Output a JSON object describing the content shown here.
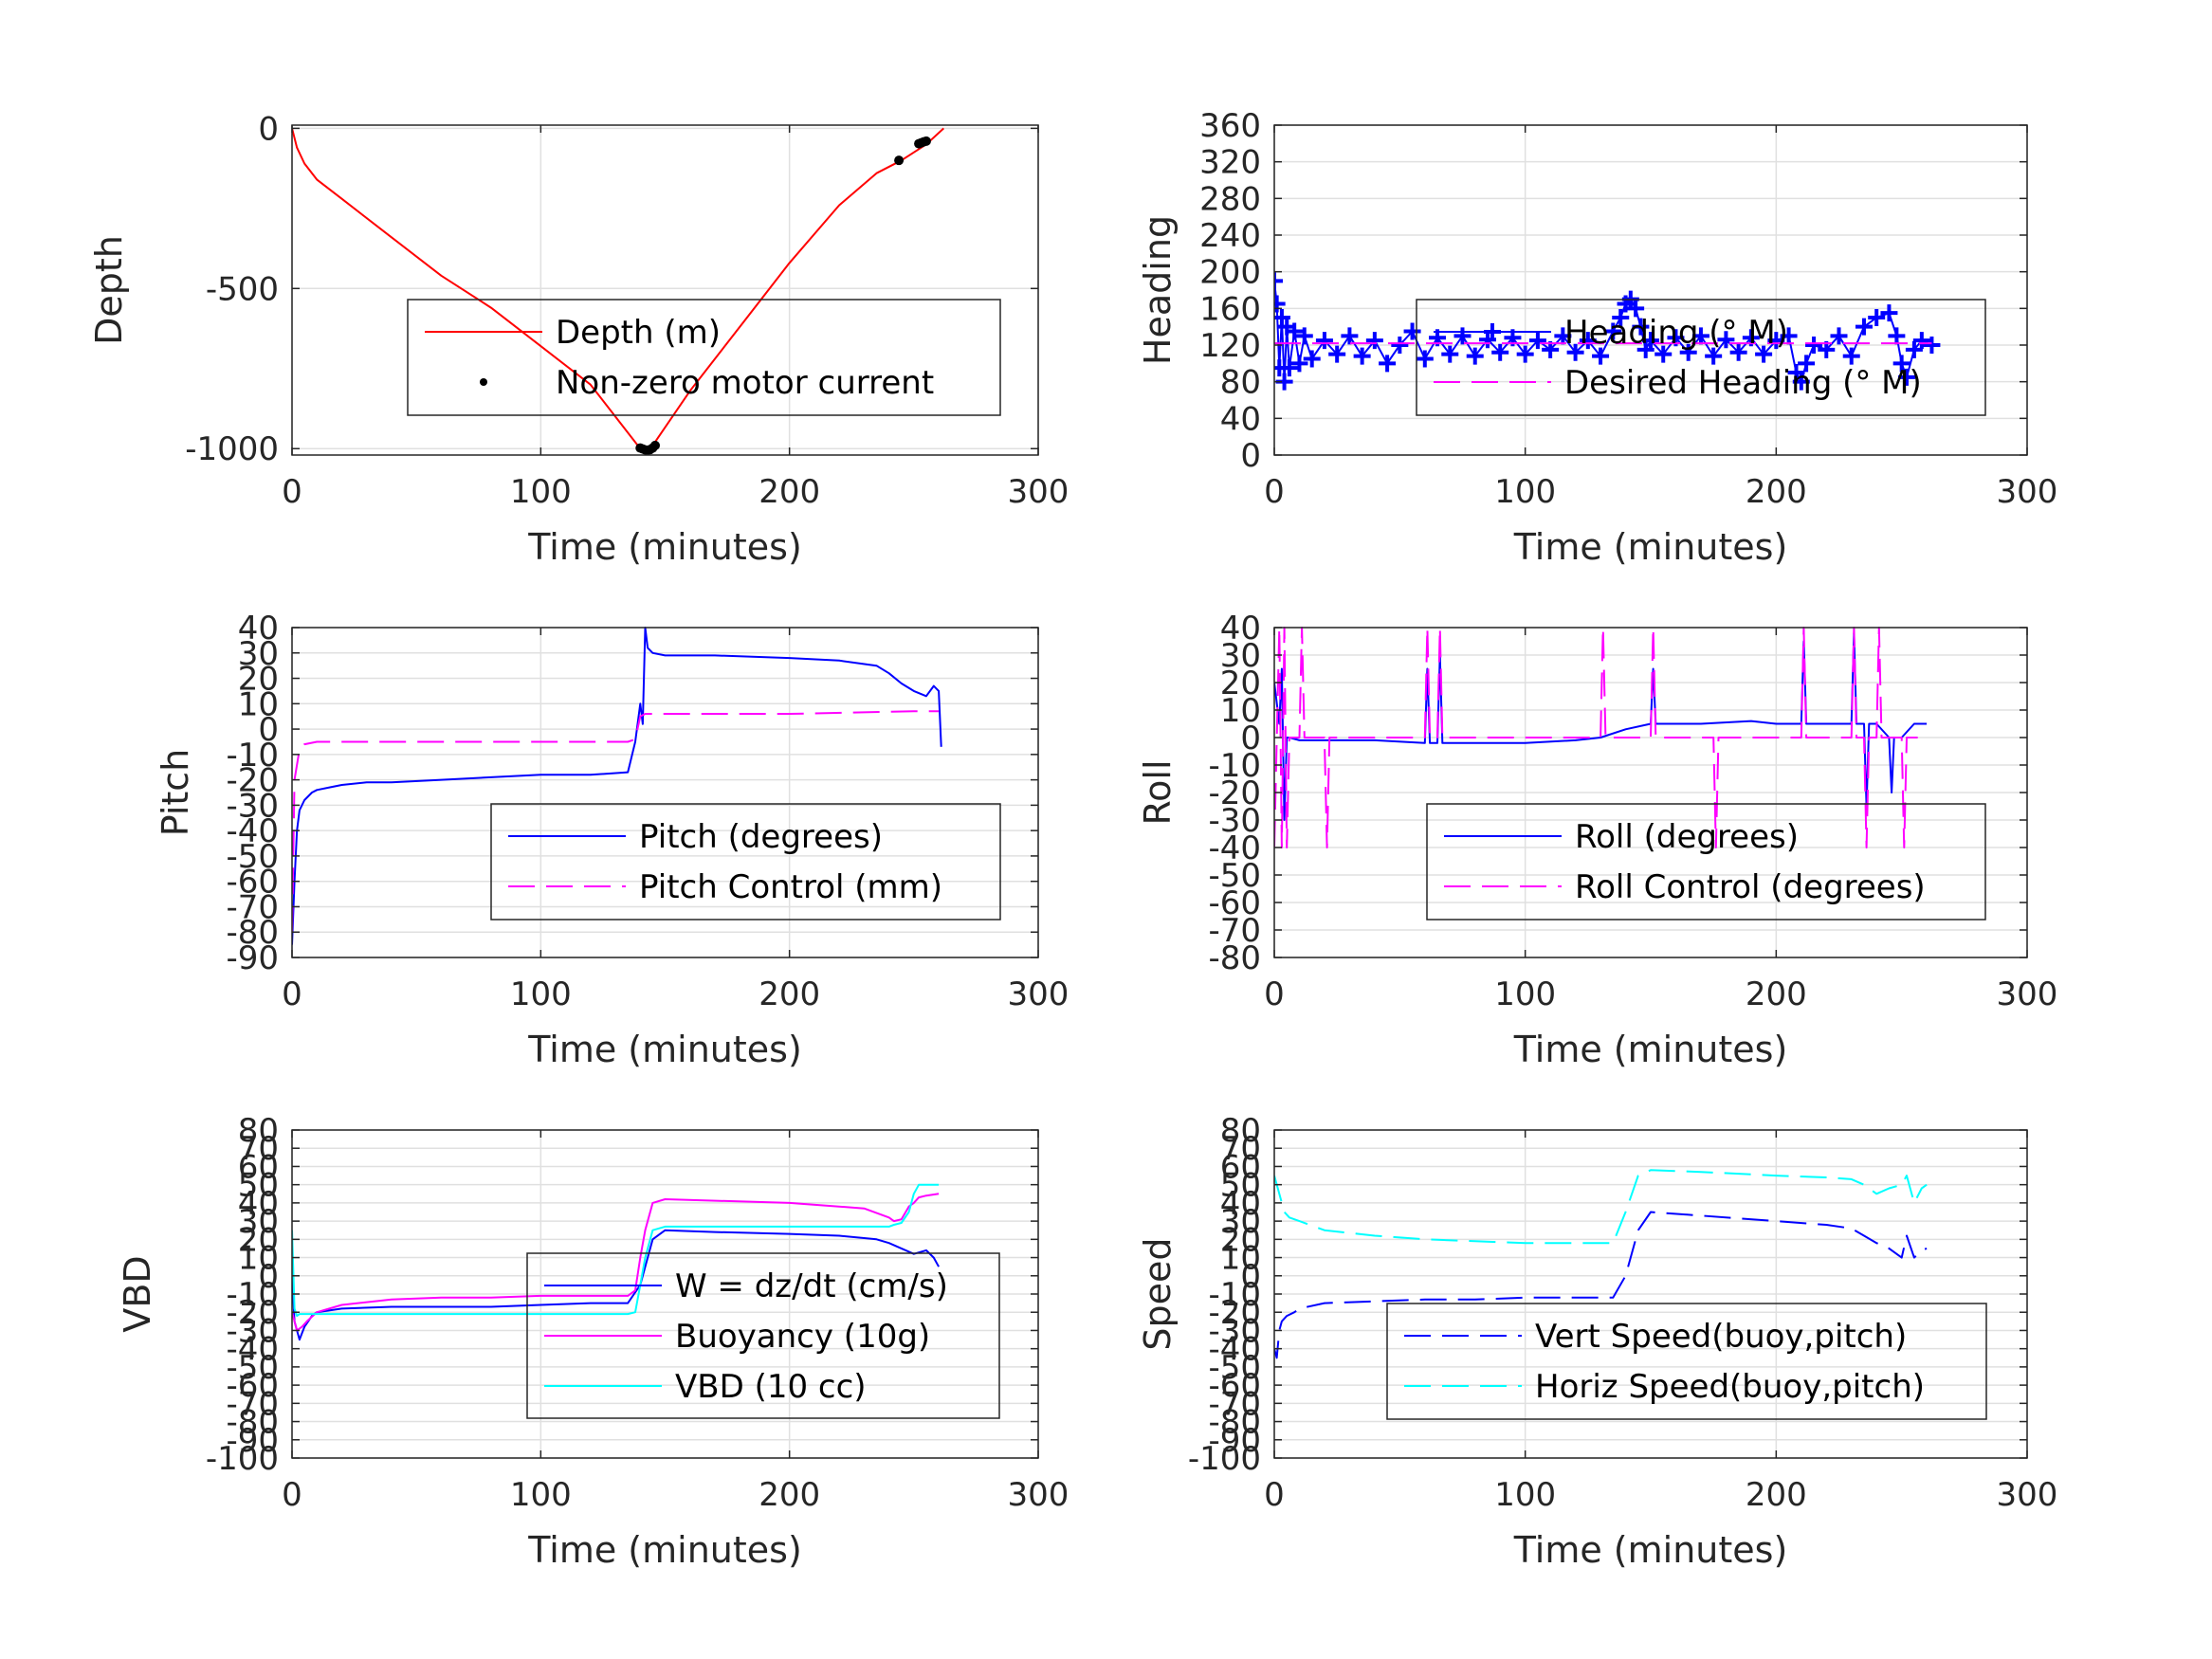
{
  "chart_data": [
    {
      "id": "depth",
      "type": "line",
      "title": "",
      "xlabel": "Time (minutes)",
      "ylabel": "Depth",
      "xlim": [
        0,
        300
      ],
      "ylim": [
        -1020,
        10
      ],
      "xticks": [
        0,
        100,
        200,
        300
      ],
      "yticks": [
        0,
        -500,
        -1000
      ],
      "grid": true,
      "legend": {
        "placement": "center-right",
        "entries": [
          "Depth (m)",
          "Non-zero motor current"
        ]
      },
      "series": [
        {
          "name": "Depth (m)",
          "style": "solid",
          "color": "#ff0000",
          "x": [
            0,
            2,
            5,
            10,
            20,
            40,
            60,
            80,
            100,
            120,
            140,
            142,
            145,
            160,
            180,
            200,
            220,
            235,
            245,
            255,
            262
          ],
          "y": [
            0,
            -60,
            -110,
            -160,
            -220,
            -340,
            -460,
            -560,
            -680,
            -800,
            -1000,
            -1005,
            -990,
            -820,
            -620,
            -420,
            -240,
            -140,
            -100,
            -50,
            0
          ]
        },
        {
          "name": "Non-zero motor current",
          "style": "dots",
          "color": "#000000",
          "x": [
            140,
            141,
            142,
            143,
            144,
            145,
            146,
            244,
            252,
            253,
            254,
            255
          ],
          "y": [
            -998,
            -1001,
            -1004,
            -1005,
            -1003,
            -998,
            -990,
            -100,
            -48,
            -45,
            -42,
            -40
          ]
        }
      ]
    },
    {
      "id": "heading",
      "type": "line",
      "title": "",
      "xlabel": "Time (minutes)",
      "ylabel": "Heading",
      "xlim": [
        0,
        300
      ],
      "ylim": [
        0,
        360
      ],
      "xticks": [
        0,
        100,
        200,
        300
      ],
      "yticks": [
        0,
        40,
        80,
        120,
        160,
        200,
        240,
        280,
        320,
        360
      ],
      "grid": true,
      "legend": {
        "placement": "top-center",
        "entries": [
          "Heading (° M)",
          "Desired Heading (° M)"
        ]
      },
      "series": [
        {
          "name": "Heading (° M)",
          "style": "plus-markers",
          "color": "#0000ff",
          "x": [
            0,
            1,
            2,
            3,
            4,
            5,
            6,
            8,
            10,
            12,
            15,
            20,
            25,
            30,
            35,
            40,
            45,
            50,
            55,
            60,
            65,
            70,
            75,
            80,
            85,
            90,
            95,
            100,
            105,
            110,
            115,
            120,
            125,
            130,
            135,
            138,
            140,
            142,
            144,
            146,
            148,
            150,
            155,
            160,
            165,
            170,
            175,
            180,
            185,
            190,
            195,
            200,
            205,
            208,
            210,
            212,
            215,
            220,
            225,
            230,
            235,
            240,
            245,
            248,
            250,
            252,
            255,
            258,
            262
          ],
          "y": [
            190,
            165,
            95,
            150,
            80,
            140,
            95,
            135,
            100,
            130,
            105,
            125,
            110,
            130,
            108,
            125,
            100,
            120,
            135,
            105,
            128,
            110,
            130,
            108,
            126,
            112,
            128,
            110,
            125,
            115,
            130,
            112,
            125,
            108,
            135,
            150,
            165,
            170,
            160,
            140,
            115,
            125,
            110,
            128,
            112,
            130,
            108,
            126,
            112,
            128,
            110,
            125,
            130,
            90,
            80,
            100,
            120,
            115,
            130,
            108,
            140,
            150,
            155,
            130,
            100,
            85,
            115,
            125,
            120
          ]
        },
        {
          "name": "Desired Heading (° M)",
          "style": "dashed",
          "color": "#ff00ff",
          "x": [
            0,
            262
          ],
          "y": [
            122,
            122
          ]
        }
      ]
    },
    {
      "id": "pitch",
      "type": "line",
      "title": "",
      "xlabel": "Time (minutes)",
      "ylabel": "Pitch",
      "xlim": [
        0,
        300
      ],
      "ylim": [
        -90,
        40
      ],
      "xticks": [
        0,
        100,
        200,
        300
      ],
      "yticks": [
        40,
        30,
        20,
        10,
        0,
        -10,
        -20,
        -30,
        -40,
        -50,
        -60,
        -70,
        -80,
        -90
      ],
      "grid": true,
      "legend": {
        "placement": "bottom-right",
        "entries": [
          "Pitch (degrees)",
          "Pitch Control (mm)"
        ]
      },
      "series": [
        {
          "name": "Pitch (degrees)",
          "style": "solid",
          "color": "#0000ff",
          "x": [
            0,
            1,
            2,
            3,
            5,
            8,
            10,
            15,
            20,
            30,
            40,
            60,
            80,
            100,
            120,
            135,
            138,
            140,
            141,
            142,
            143,
            145,
            150,
            170,
            200,
            220,
            235,
            240,
            245,
            250,
            255,
            258,
            260,
            261
          ],
          "y": [
            -85,
            -60,
            -40,
            -32,
            -28,
            -25,
            -24,
            -23,
            -22,
            -21,
            -21,
            -20,
            -19,
            -18,
            -18,
            -17,
            -5,
            10,
            2,
            40,
            32,
            30,
            29,
            29,
            28,
            27,
            25,
            22,
            18,
            15,
            13,
            17,
            15,
            -7
          ]
        },
        {
          "name": "Pitch Control (mm)",
          "style": "dashed",
          "color": "#ff00ff",
          "x": [
            0,
            1,
            3,
            5,
            10,
            50,
            100,
            135,
            138,
            140,
            142,
            145,
            200,
            250,
            258,
            260
          ],
          "y": [
            -80,
            -20,
            -8,
            -6,
            -5,
            -5,
            -5,
            -5,
            -4,
            5,
            6,
            6,
            6,
            7,
            7,
            7
          ]
        }
      ]
    },
    {
      "id": "roll",
      "type": "line",
      "title": "",
      "xlabel": "Time (minutes)",
      "ylabel": "Roll",
      "xlim": [
        0,
        300
      ],
      "ylim": [
        -80,
        40
      ],
      "xticks": [
        0,
        100,
        200,
        300
      ],
      "yticks": [
        40,
        30,
        20,
        10,
        0,
        -10,
        -20,
        -30,
        -40,
        -50,
        -60,
        -70,
        -80
      ],
      "grid": true,
      "legend": {
        "placement": "bottom-right",
        "entries": [
          "Roll (degrees)",
          "Roll Control (degrees)"
        ]
      },
      "series": [
        {
          "name": "Roll (degrees)",
          "style": "solid",
          "color": "#0000ff",
          "x": [
            0,
            2,
            3,
            4,
            5,
            6,
            10,
            20,
            40,
            60,
            61,
            62,
            65,
            66,
            67,
            80,
            100,
            120,
            130,
            140,
            150,
            151,
            152,
            170,
            190,
            200,
            210,
            211,
            212,
            230,
            231,
            232,
            235,
            236,
            237,
            240,
            245,
            246,
            247,
            250,
            255,
            260
          ],
          "y": [
            20,
            5,
            25,
            -30,
            0,
            0,
            -1,
            -1,
            -1,
            -2,
            25,
            -2,
            -2,
            30,
            -2,
            -2,
            -2,
            -1,
            0,
            3,
            5,
            25,
            5,
            5,
            6,
            5,
            5,
            35,
            5,
            5,
            38,
            5,
            5,
            -25,
            5,
            5,
            0,
            -20,
            0,
            0,
            5,
            5
          ]
        },
        {
          "name": "Roll Control (degrees)",
          "style": "dashed",
          "color": "#ff00ff",
          "x": [
            0,
            2,
            3,
            4,
            5,
            6,
            10,
            11,
            12,
            20,
            21,
            22,
            30,
            50,
            60,
            61,
            62,
            65,
            66,
            67,
            100,
            130,
            131,
            132,
            140,
            150,
            151,
            152,
            175,
            176,
            177,
            200,
            210,
            211,
            212,
            230,
            231,
            232,
            235,
            236,
            237,
            240,
            241,
            242,
            250,
            251,
            252,
            255,
            260
          ],
          "y": [
            -40,
            40,
            -40,
            40,
            -40,
            0,
            0,
            40,
            0,
            0,
            -40,
            0,
            0,
            0,
            0,
            40,
            0,
            0,
            40,
            0,
            0,
            0,
            40,
            0,
            0,
            0,
            40,
            0,
            0,
            -40,
            0,
            0,
            0,
            40,
            0,
            0,
            40,
            0,
            0,
            -40,
            0,
            0,
            40,
            0,
            0,
            -40,
            0,
            0,
            0
          ]
        }
      ]
    },
    {
      "id": "vbd",
      "type": "line",
      "title": "",
      "xlabel": "Time (minutes)",
      "ylabel": "VBD",
      "xlim": [
        0,
        300
      ],
      "ylim": [
        -100,
        80
      ],
      "xticks": [
        0,
        100,
        200,
        300
      ],
      "yticks": [
        80,
        70,
        60,
        50,
        40,
        30,
        20,
        10,
        0,
        -10,
        -20,
        -30,
        -40,
        -50,
        -60,
        -70,
        -80,
        -90,
        -100
      ],
      "grid": true,
      "legend": {
        "placement": "bottom-right",
        "entries": [
          "W = dz/dt (cm/s)",
          "Buoyancy (10g)",
          "VBD (10 cc)"
        ]
      },
      "series": [
        {
          "name": "W = dz/dt (cm/s)",
          "style": "solid",
          "color": "#0000ff",
          "x": [
            0,
            1,
            2,
            3,
            5,
            8,
            10,
            20,
            40,
            60,
            80,
            100,
            120,
            135,
            140,
            145,
            150,
            170,
            200,
            220,
            235,
            240,
            245,
            250,
            255,
            258,
            260
          ],
          "y": [
            0,
            -25,
            -30,
            -35,
            -28,
            -22,
            -20,
            -18,
            -17,
            -17,
            -17,
            -16,
            -15,
            -15,
            -5,
            20,
            25,
            24,
            23,
            22,
            20,
            18,
            15,
            12,
            14,
            10,
            5
          ]
        },
        {
          "name": "Buoyancy (10g)",
          "style": "solid",
          "color": "#ff00ff",
          "x": [
            0,
            2,
            4,
            6,
            10,
            20,
            40,
            60,
            80,
            100,
            135,
            138,
            140,
            142,
            145,
            150,
            200,
            230,
            240,
            242,
            245,
            248,
            250,
            252,
            255,
            260
          ],
          "y": [
            -20,
            -30,
            -28,
            -25,
            -20,
            -16,
            -13,
            -12,
            -12,
            -11,
            -11,
            -8,
            10,
            25,
            40,
            42,
            40,
            37,
            32,
            30,
            31,
            38,
            40,
            43,
            44,
            45
          ]
        },
        {
          "name": "VBD (10 cc)",
          "style": "solid",
          "color": "#00ffff",
          "x": [
            0,
            1,
            2,
            3,
            5,
            10,
            50,
            100,
            135,
            138,
            140,
            142,
            145,
            150,
            200,
            240,
            242,
            245,
            248,
            250,
            252,
            255,
            258,
            260
          ],
          "y": [
            25,
            -18,
            -22,
            -21,
            -21,
            -21,
            -21,
            -21,
            -21,
            -20,
            -5,
            10,
            25,
            27,
            27,
            27,
            28,
            29,
            35,
            45,
            50,
            50,
            50,
            50
          ]
        }
      ]
    },
    {
      "id": "speed",
      "type": "line",
      "title": "",
      "xlabel": "Time (minutes)",
      "ylabel": "Speed",
      "xlim": [
        0,
        300
      ],
      "ylim": [
        -100,
        80
      ],
      "xticks": [
        0,
        100,
        200,
        300
      ],
      "yticks": [
        80,
        70,
        60,
        50,
        40,
        30,
        20,
        10,
        0,
        -10,
        -20,
        -30,
        -40,
        -50,
        -60,
        -70,
        -80,
        -90,
        -100
      ],
      "grid": true,
      "legend": {
        "placement": "bottom-right",
        "entries": [
          "Vert Speed(buoy,pitch)",
          "Horiz Speed(buoy,pitch)"
        ]
      },
      "series": [
        {
          "name": "Vert Speed(buoy,pitch)",
          "style": "dashed",
          "color": "#0000ff",
          "x": [
            0,
            1,
            2,
            3,
            5,
            8,
            10,
            20,
            40,
            60,
            80,
            100,
            120,
            135,
            140,
            145,
            150,
            170,
            200,
            220,
            230,
            235,
            240,
            245,
            250,
            252,
            255,
            258,
            260
          ],
          "y": [
            -40,
            -45,
            -30,
            -25,
            -22,
            -20,
            -18,
            -15,
            -14,
            -13,
            -13,
            -12,
            -12,
            -12,
            0,
            25,
            35,
            33,
            30,
            28,
            26,
            22,
            18,
            15,
            10,
            22,
            10,
            14,
            15
          ]
        },
        {
          "name": "Horiz Speed(buoy,pitch)",
          "style": "dashed",
          "color": "#00ffff",
          "x": [
            0,
            2,
            4,
            6,
            10,
            20,
            40,
            60,
            80,
            100,
            120,
            135,
            140,
            145,
            150,
            170,
            200,
            220,
            230,
            235,
            240,
            245,
            250,
            252,
            255,
            258,
            260
          ],
          "y": [
            55,
            45,
            35,
            32,
            30,
            25,
            22,
            20,
            19,
            18,
            18,
            18,
            35,
            55,
            58,
            57,
            55,
            54,
            53,
            50,
            45,
            48,
            50,
            55,
            40,
            48,
            50
          ]
        }
      ]
    }
  ]
}
